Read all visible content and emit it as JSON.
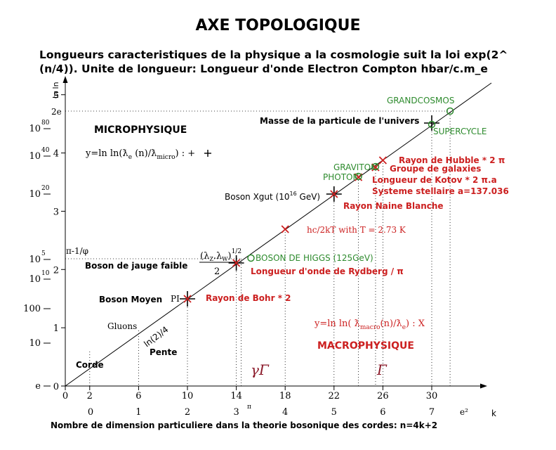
{
  "chart_data": {
    "type": "line",
    "title": "AXE TOPOLOGIQUE",
    "subtitle_line1": "Longueurs caracteristiques de la physique a la cosmologie suit la loi exp(2^",
    "subtitle_line2": "(n/4)). Unite de longueur: Longueur d'onde Electron Compton hbar/c.m_e",
    "xlabel": "k",
    "ylabel": "ln ln",
    "footer": "Nombre de dimension particuliere dans la theorie bosonique des cordes: n=4k+2",
    "n_ticks": [
      "0",
      "2",
      "6",
      "10",
      "14",
      "18",
      "22",
      "26",
      "30"
    ],
    "k_ticks": [
      "0",
      "1",
      "2",
      "3",
      "4",
      "5",
      "6",
      "7"
    ],
    "k_extra": [
      "π",
      "e²"
    ],
    "lnln_ticks": [
      "0",
      "1",
      "2",
      "3",
      "4",
      "5"
    ],
    "lnln_extra": [
      "2e",
      "π-1/φ"
    ],
    "length_ticks": [
      "e",
      "10",
      "100",
      "10",
      "10",
      "10",
      "10",
      "10"
    ],
    "length_exponents": [
      "5",
      "10",
      "20",
      "40",
      "80"
    ],
    "regions": {
      "micro": "MICROPHYSIQUE",
      "macro": "MACROPHYSIQUE"
    },
    "formula_micro": "y=ln ln(ƛ",
    "formula_micro_sub": "e",
    "formula_micro_mid": " (n)/ƛ",
    "formula_micro_sub2": "micro",
    "formula_micro_end": ") : +",
    "formula_macro": "y=ln ln( ƛ",
    "formula_macro_sub": "macro",
    "formula_macro_mid": "(n)/ƛ",
    "formula_macro_sub2": "e",
    "formula_macro_end": ") : X",
    "labels": {
      "corde": "Corde",
      "pente": "Pente",
      "ln24": "ln(2)/4",
      "gluons": "Gluons",
      "boson_moyen": "Boson Moyen",
      "pi": "PI",
      "bohr": "Rayon de Bohr * 2",
      "jauge": "Boson de jauge faible",
      "frac_num": "(λ",
      "frac_z": "Z",
      "frac_mid": ".λ",
      "frac_w": "W",
      "frac_pow": ")",
      "frac_exp": "1/2",
      "frac_den": "2",
      "higgs": "BOSON DE HIGGS (125GeV)",
      "rydberg": "Longueur d'onde de Rydberg / π",
      "hc2kt": "hc/2kT  with T = 2.73 K",
      "xgut": "Boson Xgut (10",
      "xgut_exp": "16",
      "xgut_end": " GeV)",
      "naine": "Rayon Naine Blanche",
      "photon": "PHOTON",
      "graviton": "GRAVITON",
      "kotov": "Longueur de Kotov * 2 π.a",
      "stellaire": "Systeme stellaire a=137.036",
      "galaxies": "Groupe de galaxies",
      "hubble": "Rayon de Hubble * 2 π",
      "masse": "Masse de la particule de l'univers",
      "supercycle": "SUPERCYCLE",
      "grandcosmos": "GRANDCOSMOS",
      "gamma": "γΓ",
      "gamma2": "Γ"
    },
    "colors": {
      "line": "#000000",
      "green": "#2e8b2e",
      "red": "#cc2020",
      "crimson": "#8b1a2a"
    },
    "x_range": [
      0,
      32
    ],
    "y_range": [
      0,
      5.6
    ],
    "plus_points": [
      [
        10,
        1.5707
      ],
      [
        14,
        2.0194
      ],
      [
        22,
        2.8868
      ],
      [
        30,
        3.6651
      ]
    ],
    "x_points": [
      [
        14,
        2.0194
      ],
      [
        18,
        2.4384
      ],
      [
        22,
        2.8868
      ],
      [
        24,
        3.0856
      ],
      [
        25,
        3.22
      ],
      [
        26,
        3.341
      ]
    ],
    "circle_points": [
      [
        14.4,
        2.07
      ],
      [
        24,
        3.0856
      ],
      [
        25,
        3.22
      ],
      [
        30,
        3.88
      ],
      [
        31.5,
        4.14
      ]
    ]
  }
}
